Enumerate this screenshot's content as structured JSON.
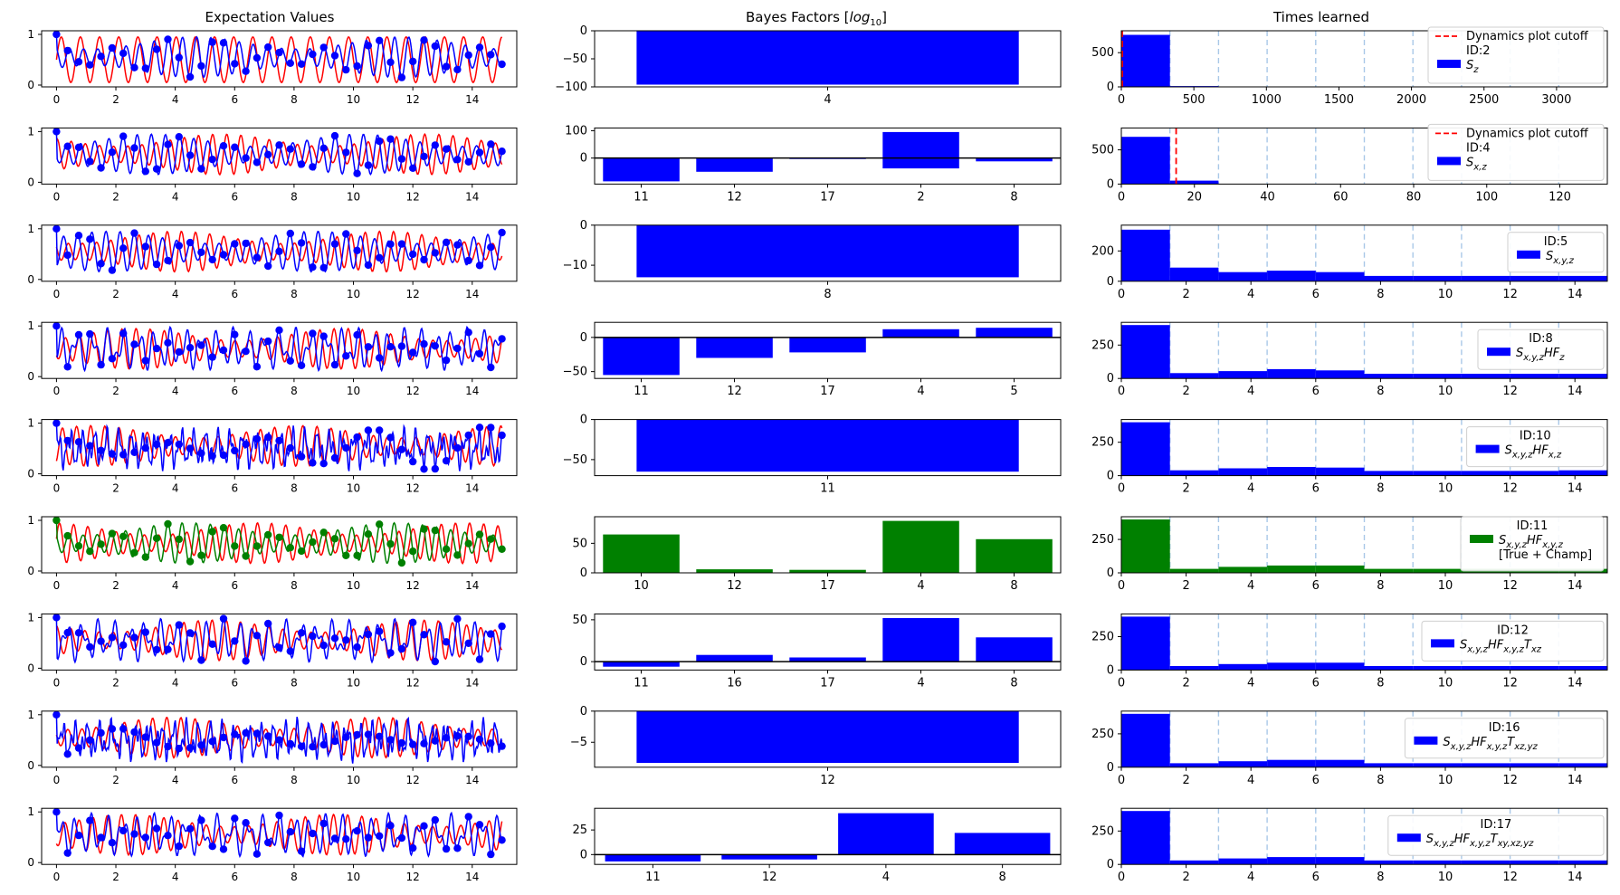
{
  "column_titles": {
    "dynamics": "Expectation Values",
    "bayes": "Bayes Factors [log10]",
    "times": "Times learned"
  },
  "chart_data": [
    {
      "row": 0,
      "highlight_color": "#0000ff",
      "dynamics": {
        "type": "line",
        "xlim": [
          0,
          15
        ],
        "ylim": [
          0,
          1
        ],
        "x_ticks": [
          "0",
          "2",
          "4",
          "6",
          "8",
          "10",
          "12",
          "14"
        ],
        "y_ticks": [
          "0",
          "1"
        ],
        "series": [
          {
            "color": "#ff0000",
            "osc": "slow"
          },
          {
            "color": "#0000ff",
            "osc": "fast",
            "markers": true
          }
        ]
      },
      "bayes": {
        "type": "bar",
        "categories": [
          "4"
        ],
        "values": [
          -96
        ],
        "ylim": [
          -100,
          0
        ],
        "y_ticks": [
          -100,
          -50,
          0
        ],
        "bar_color": "#0000ff"
      },
      "times": {
        "type": "bar",
        "xlim": [
          0,
          3350
        ],
        "x_ticks": [
          0,
          500,
          1000,
          1500,
          2000,
          2500,
          3000
        ],
        "bar_edges": [
          0,
          335,
          670
        ],
        "bar_values": [
          760,
          12
        ],
        "ylim": [
          0,
          820
        ],
        "y_ticks": [
          0,
          500
        ],
        "cutoff": 0,
        "legend": {
          "cutoff_label": "Dynamics plot cutoff",
          "id_label": "ID:2",
          "model": "S_z"
        }
      }
    },
    {
      "row": 1,
      "highlight_color": "#0000ff",
      "dynamics": {
        "type": "line",
        "xlim": [
          0,
          15
        ],
        "ylim": [
          0,
          1
        ],
        "x_ticks": [
          "0",
          "2",
          "4",
          "6",
          "8",
          "10",
          "12",
          "14"
        ],
        "y_ticks": [
          "0",
          "1"
        ],
        "series": [
          {
            "color": "#ff0000",
            "osc": "fast"
          },
          {
            "color": "#0000ff",
            "osc": "fast",
            "markers": true
          }
        ]
      },
      "bayes": {
        "type": "bar",
        "categories": [
          "11",
          "12",
          "17",
          "2",
          "8"
        ],
        "values": [
          -85,
          -50,
          0,
          95,
          -12
        ],
        "extra_low": [
          null,
          null,
          null,
          -38,
          null
        ],
        "ylim": [
          -95,
          110
        ],
        "y_ticks": [
          0,
          100
        ],
        "zero_line": true,
        "bar_color": "#0000ff"
      },
      "times": {
        "type": "bar",
        "xlim": [
          0,
          133
        ],
        "x_ticks": [
          0,
          20,
          40,
          60,
          80,
          100,
          120
        ],
        "bar_edges": [
          0,
          13.3,
          26.6
        ],
        "bar_values": [
          690,
          50
        ],
        "ylim": [
          0,
          820
        ],
        "y_ticks": [
          0,
          500
        ],
        "cutoff": 15,
        "legend": {
          "cutoff_label": "Dynamics plot cutoff",
          "id_label": "ID:4",
          "model": "S_{x,z}"
        }
      }
    },
    {
      "row": 2,
      "highlight_color": "#0000ff",
      "dynamics": {
        "type": "line",
        "xlim": [
          0,
          15
        ],
        "ylim": [
          0,
          1
        ],
        "x_ticks": [
          "0",
          "2",
          "4",
          "6",
          "8",
          "10",
          "12",
          "14"
        ],
        "y_ticks": [
          "0",
          "1"
        ],
        "series": [
          {
            "color": "#ff0000",
            "osc": "fast"
          },
          {
            "color": "#0000ff",
            "osc": "fast",
            "markers": true
          }
        ]
      },
      "bayes": {
        "type": "bar",
        "categories": [
          "8"
        ],
        "values": [
          -13
        ],
        "ylim": [
          -14,
          0
        ],
        "y_ticks": [
          -10,
          0
        ],
        "bar_color": "#0000ff"
      },
      "times": {
        "type": "bar",
        "xlim": [
          0,
          15
        ],
        "x_ticks": [
          0,
          2,
          4,
          6,
          8,
          10,
          12,
          14
        ],
        "bar_edges": [
          0,
          1.5,
          3,
          4.5,
          6,
          7.5,
          9,
          10.5,
          12,
          13.5,
          15
        ],
        "bar_values": [
          340,
          90,
          60,
          70,
          60,
          35,
          35,
          35,
          35,
          35
        ],
        "ylim": [
          0,
          370
        ],
        "y_ticks": [
          0,
          200
        ],
        "legend": {
          "id_label": "ID:5",
          "model": "S_{x,y,z}"
        }
      }
    },
    {
      "row": 3,
      "highlight_color": "#0000ff",
      "dynamics": {
        "type": "line",
        "xlim": [
          0,
          15
        ],
        "ylim": [
          0,
          1
        ],
        "x_ticks": [
          "0",
          "2",
          "4",
          "6",
          "8",
          "10",
          "12",
          "14"
        ],
        "y_ticks": [
          "0",
          "1"
        ],
        "series": [
          {
            "color": "#ff0000",
            "osc": "fast"
          },
          {
            "color": "#0000ff",
            "osc": "irregular",
            "markers": true
          }
        ]
      },
      "bayes": {
        "type": "bar",
        "categories": [
          "11",
          "12",
          "17",
          "4",
          "5"
        ],
        "values": [
          -55,
          -30,
          -22,
          12,
          14
        ],
        "ylim": [
          -60,
          22
        ],
        "y_ticks": [
          -50,
          0
        ],
        "zero_line": true,
        "bar_color": "#0000ff"
      },
      "times": {
        "type": "bar",
        "xlim": [
          0,
          15
        ],
        "x_ticks": [
          0,
          2,
          4,
          6,
          8,
          10,
          12,
          14
        ],
        "bar_edges": [
          0,
          1.5,
          3,
          4.5,
          6,
          7.5,
          9,
          10.5,
          12,
          13.5,
          15
        ],
        "bar_values": [
          400,
          40,
          55,
          70,
          60,
          35,
          35,
          35,
          35,
          35
        ],
        "ylim": [
          0,
          420
        ],
        "y_ticks": [
          0,
          250
        ],
        "legend": {
          "id_label": "ID:8",
          "model": "S_{x,y,z}HF_{z}"
        }
      }
    },
    {
      "row": 4,
      "highlight_color": "#0000ff",
      "dynamics": {
        "type": "line",
        "xlim": [
          0,
          15
        ],
        "ylim": [
          0,
          1
        ],
        "x_ticks": [
          "0",
          "2",
          "4",
          "6",
          "8",
          "10",
          "12",
          "14"
        ],
        "y_ticks": [
          "0",
          "1"
        ],
        "series": [
          {
            "color": "#ff0000",
            "osc": "fast"
          },
          {
            "color": "#0000ff",
            "osc": "noisy",
            "markers": true
          }
        ]
      },
      "bayes": {
        "type": "bar",
        "categories": [
          "11"
        ],
        "values": [
          -65
        ],
        "ylim": [
          -70,
          0
        ],
        "y_ticks": [
          -50,
          0
        ],
        "bar_color": "#0000ff"
      },
      "times": {
        "type": "bar",
        "xlim": [
          0,
          15
        ],
        "x_ticks": [
          0,
          2,
          4,
          6,
          8,
          10,
          12,
          14
        ],
        "bar_edges": [
          0,
          1.5,
          3,
          4.5,
          6,
          7.5,
          9,
          10.5,
          12,
          13.5,
          15
        ],
        "bar_values": [
          400,
          40,
          55,
          65,
          60,
          35,
          35,
          35,
          35,
          40
        ],
        "ylim": [
          0,
          420
        ],
        "y_ticks": [
          0,
          250
        ],
        "legend": {
          "id_label": "ID:10",
          "model": "S_{x,y,z}HF_{x,z}"
        }
      }
    },
    {
      "row": 5,
      "highlight_color": "#008000",
      "dynamics": {
        "type": "line",
        "xlim": [
          0,
          15
        ],
        "ylim": [
          0,
          1
        ],
        "x_ticks": [
          "0",
          "2",
          "4",
          "6",
          "8",
          "10",
          "12",
          "14"
        ],
        "y_ticks": [
          "0",
          "1"
        ],
        "series": [
          {
            "color": "#ff0000",
            "osc": "fast"
          },
          {
            "color": "#008000",
            "osc": "fast",
            "markers": true
          }
        ]
      },
      "bayes": {
        "type": "bar",
        "categories": [
          "10",
          "12",
          "17",
          "4",
          "8"
        ],
        "values": [
          65,
          6,
          5,
          88,
          57
        ],
        "ylim": [
          0,
          95
        ],
        "y_ticks": [
          0,
          50
        ],
        "bar_color": "#008000"
      },
      "times": {
        "type": "bar",
        "xlim": [
          0,
          15
        ],
        "x_ticks": [
          0,
          2,
          4,
          6,
          8,
          10,
          12,
          14
        ],
        "bar_edges": [
          0,
          1.5,
          3,
          4.5,
          6,
          7.5,
          9,
          10.5,
          12,
          13.5,
          15
        ],
        "bar_values": [
          400,
          30,
          45,
          55,
          55,
          30,
          30,
          30,
          30,
          30
        ],
        "ylim": [
          0,
          420
        ],
        "y_ticks": [
          0,
          250
        ],
        "legend": {
          "id_label": "ID:11",
          "model": "S_{x,y,z}HF_{x,y,z}",
          "extra": "[True + Champ]"
        }
      }
    },
    {
      "row": 6,
      "highlight_color": "#0000ff",
      "dynamics": {
        "type": "line",
        "xlim": [
          0,
          15
        ],
        "ylim": [
          0,
          1
        ],
        "x_ticks": [
          "0",
          "2",
          "4",
          "6",
          "8",
          "10",
          "12",
          "14"
        ],
        "y_ticks": [
          "0",
          "1"
        ],
        "series": [
          {
            "color": "#ff0000",
            "osc": "fast"
          },
          {
            "color": "#0000ff",
            "osc": "irregular",
            "markers": true
          }
        ]
      },
      "bayes": {
        "type": "bar",
        "categories": [
          "11",
          "16",
          "17",
          "4",
          "8"
        ],
        "values": [
          -6,
          8,
          5,
          52,
          29
        ],
        "ylim": [
          -10,
          57
        ],
        "y_ticks": [
          0,
          50
        ],
        "zero_line": true,
        "bar_color": "#0000ff"
      },
      "times": {
        "type": "bar",
        "xlim": [
          0,
          15
        ],
        "x_ticks": [
          0,
          2,
          4,
          6,
          8,
          10,
          12,
          14
        ],
        "bar_edges": [
          0,
          1.5,
          3,
          4.5,
          6,
          7.5,
          9,
          10.5,
          12,
          13.5,
          15
        ],
        "bar_values": [
          400,
          30,
          45,
          55,
          55,
          30,
          30,
          30,
          30,
          30
        ],
        "ylim": [
          0,
          420
        ],
        "y_ticks": [
          0,
          250
        ],
        "legend": {
          "id_label": "ID:12",
          "model": "S_{x,y,z}HF_{x,y,z}T_{xz}"
        }
      }
    },
    {
      "row": 7,
      "highlight_color": "#0000ff",
      "dynamics": {
        "type": "line",
        "xlim": [
          0,
          15
        ],
        "ylim": [
          0,
          1
        ],
        "x_ticks": [
          "0",
          "2",
          "4",
          "6",
          "8",
          "10",
          "12",
          "14"
        ],
        "y_ticks": [
          "0",
          "1"
        ],
        "series": [
          {
            "color": "#ff0000",
            "osc": "fast"
          },
          {
            "color": "#0000ff",
            "osc": "noisy",
            "markers": true
          }
        ]
      },
      "bayes": {
        "type": "bar",
        "categories": [
          "12"
        ],
        "values": [
          -8.3
        ],
        "ylim": [
          -9,
          0
        ],
        "y_ticks": [
          -5,
          0
        ],
        "bar_color": "#0000ff"
      },
      "times": {
        "type": "bar",
        "xlim": [
          0,
          15
        ],
        "x_ticks": [
          0,
          2,
          4,
          6,
          8,
          10,
          12,
          14
        ],
        "bar_edges": [
          0,
          1.5,
          3,
          4.5,
          6,
          7.5,
          9,
          10.5,
          12,
          13.5,
          15
        ],
        "bar_values": [
          400,
          30,
          45,
          55,
          55,
          30,
          30,
          30,
          30,
          30
        ],
        "ylim": [
          0,
          420
        ],
        "y_ticks": [
          0,
          250
        ],
        "legend": {
          "id_label": "ID:16",
          "model": "S_{x,y,z}HF_{x,y,z}T_{xz,yz}"
        }
      }
    },
    {
      "row": 8,
      "highlight_color": "#0000ff",
      "dynamics": {
        "type": "line",
        "xlim": [
          0,
          15
        ],
        "ylim": [
          0,
          1
        ],
        "x_ticks": [
          "0",
          "2",
          "4",
          "6",
          "8",
          "10",
          "12",
          "14"
        ],
        "y_ticks": [
          "0",
          "1"
        ],
        "series": [
          {
            "color": "#ff0000",
            "osc": "fast"
          },
          {
            "color": "#0000ff",
            "osc": "irregular",
            "markers": true
          }
        ]
      },
      "bayes": {
        "type": "bar",
        "categories": [
          "11",
          "12",
          "4",
          "8"
        ],
        "values": [
          -7,
          -5,
          42,
          22
        ],
        "ylim": [
          -10,
          47
        ],
        "y_ticks": [
          0,
          25
        ],
        "zero_line": true,
        "bar_color": "#0000ff"
      },
      "times": {
        "type": "bar",
        "xlim": [
          0,
          15
        ],
        "x_ticks": [
          0,
          2,
          4,
          6,
          8,
          10,
          12,
          14
        ],
        "bar_edges": [
          0,
          1.5,
          3,
          4.5,
          6,
          7.5,
          9,
          10.5,
          12,
          13.5,
          15
        ],
        "bar_values": [
          400,
          30,
          45,
          55,
          55,
          30,
          30,
          30,
          30,
          30
        ],
        "ylim": [
          0,
          420
        ],
        "y_ticks": [
          0,
          250
        ],
        "legend": {
          "id_label": "ID:17",
          "model": "S_{x,y,z}HF_{x,y,z}T_{xy,xz,yz}"
        }
      }
    }
  ]
}
